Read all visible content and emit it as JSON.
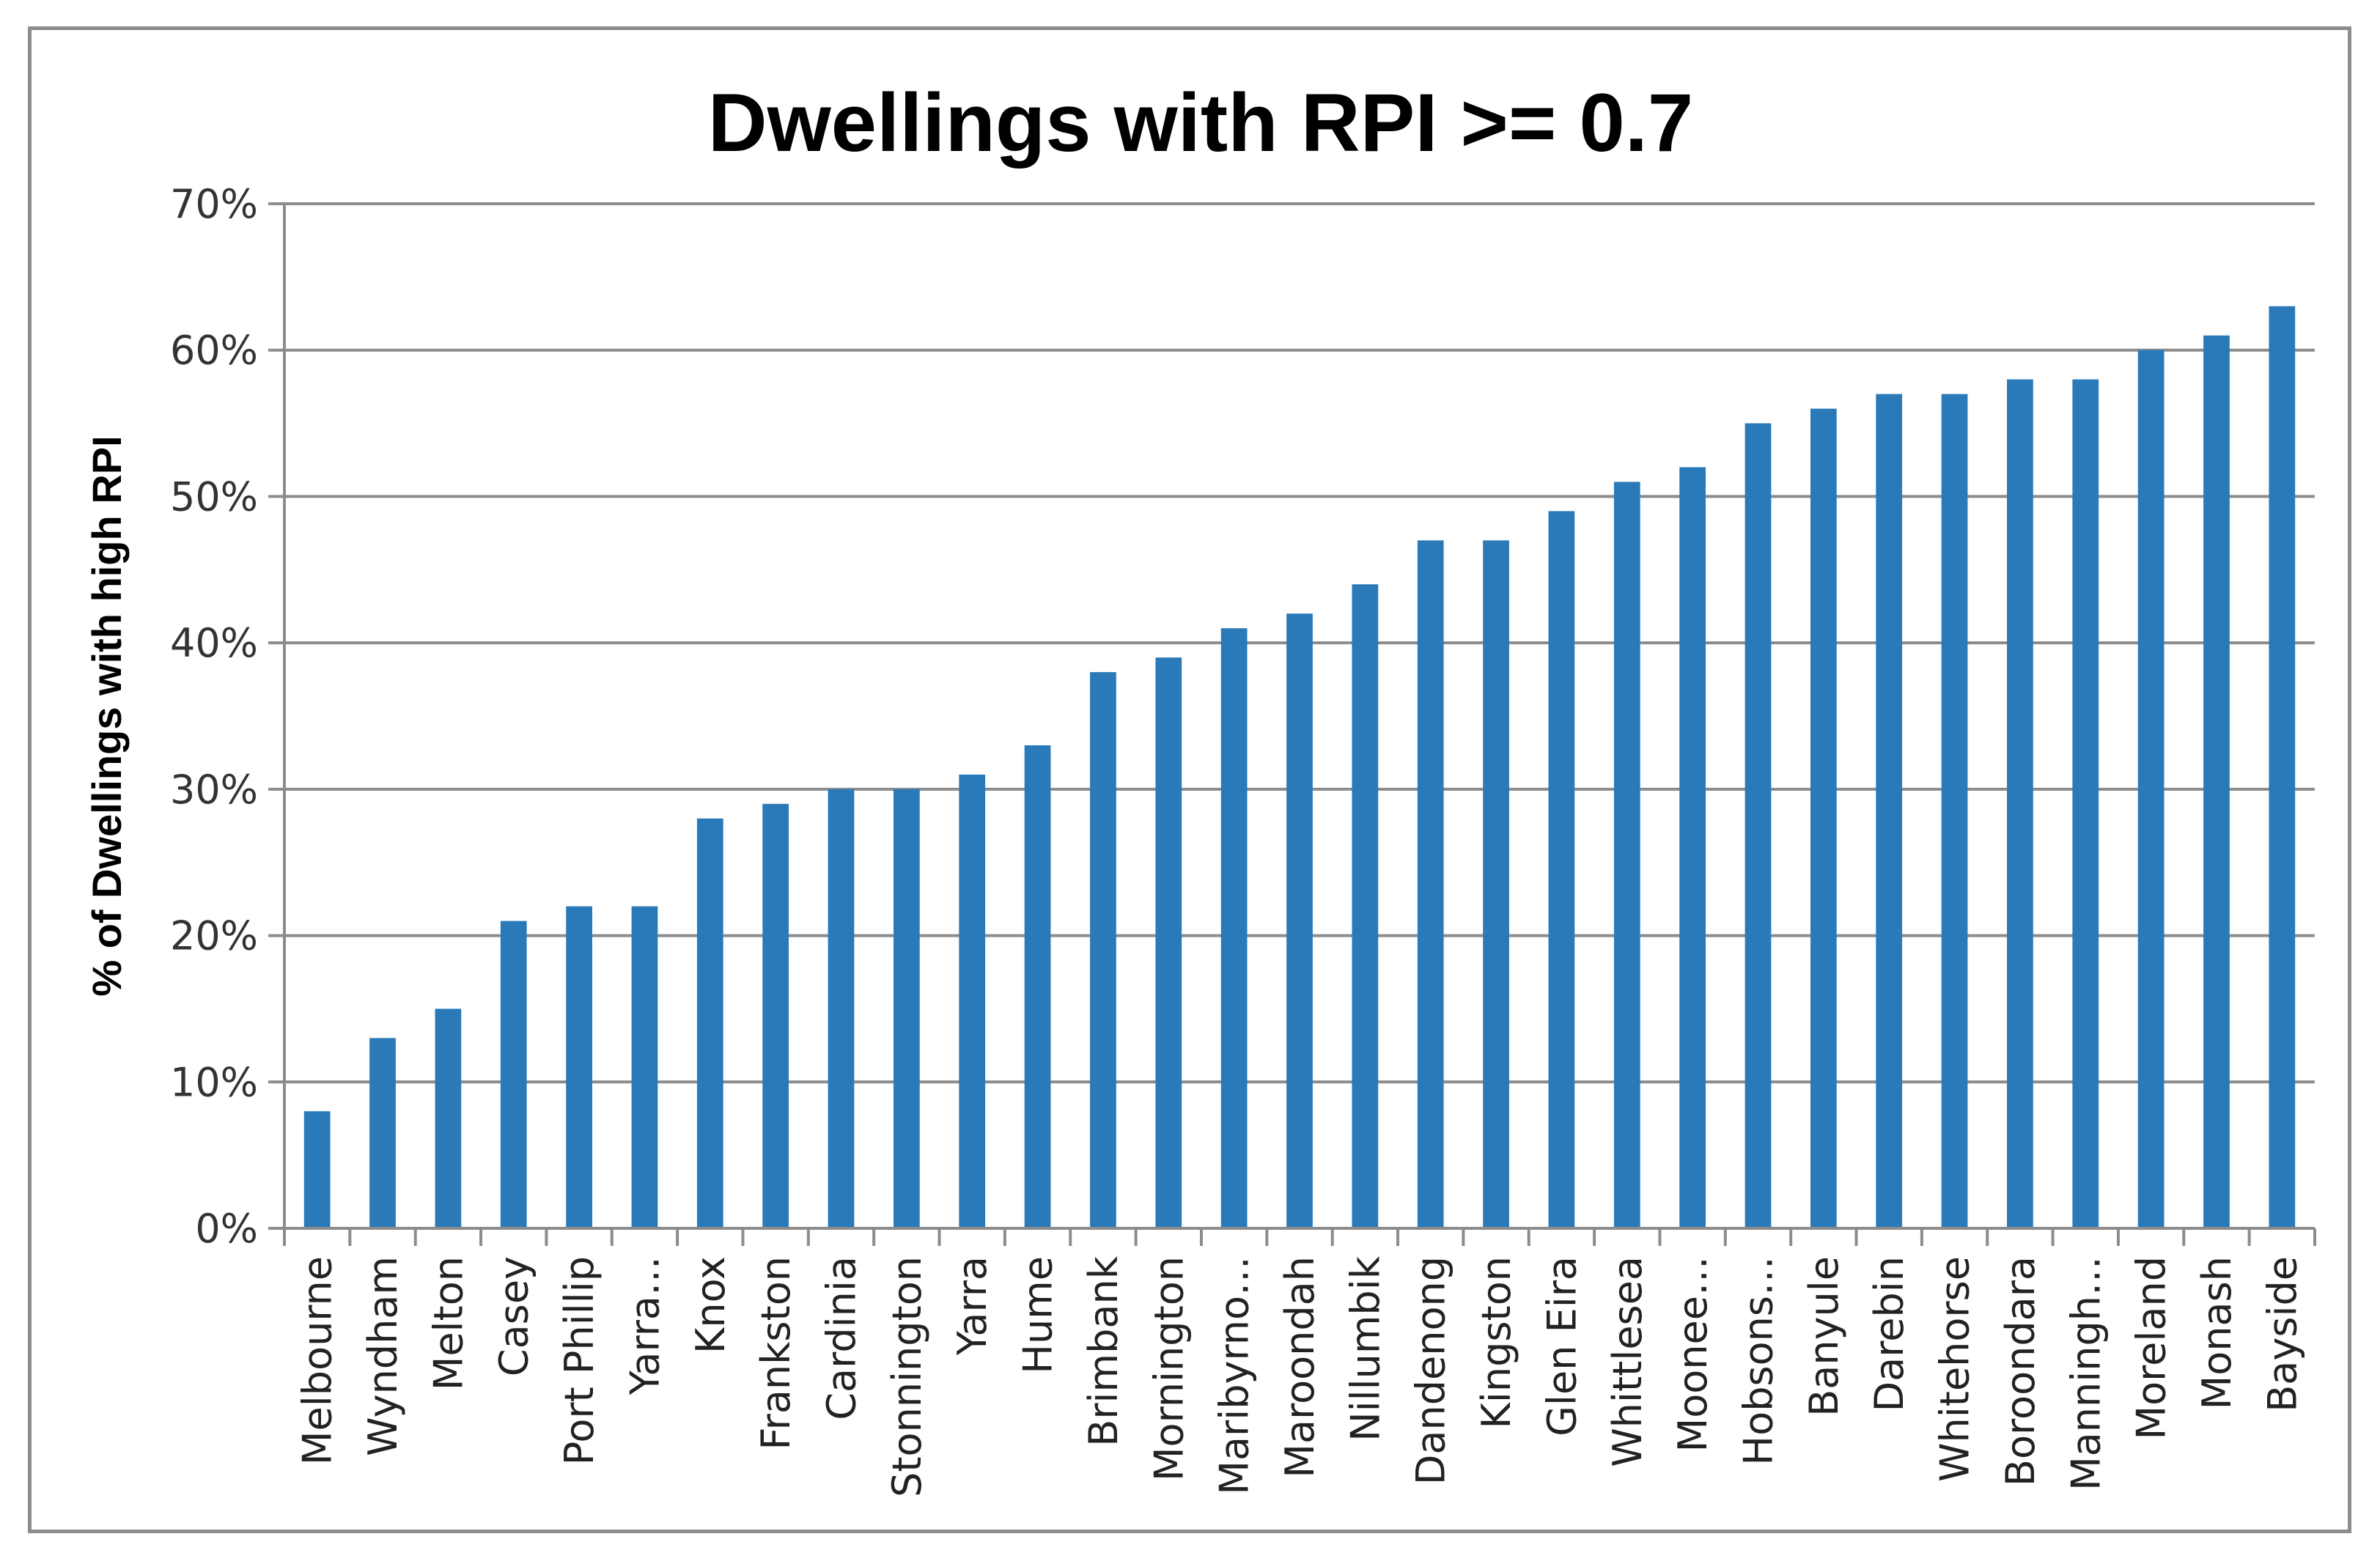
{
  "chart_data": {
    "type": "bar",
    "title": "Dwellings with RPI >= 0.7",
    "xlabel": "",
    "ylabel": "% of Dwellings with high RPI",
    "ylim": [
      0,
      70
    ],
    "yticks": [
      "0%",
      "10%",
      "20%",
      "30%",
      "40%",
      "50%",
      "60%",
      "70%"
    ],
    "grid": true,
    "bar_color": "#2A7AB9",
    "categories": [
      "Melbourne",
      "Wyndham",
      "Melton",
      "Casey",
      "Port Phillip",
      "Yarra…",
      "Knox",
      "Frankston",
      "Cardinia",
      "Stonnington",
      "Yarra",
      "Hume",
      "Brimbank",
      "Mornington",
      "Maribyrno…",
      "Maroondah",
      "Nillumbik",
      "Dandenong",
      "Kingston",
      "Glen Eira",
      "Whittlesea",
      "Moonee…",
      "Hobsons…",
      "Banyule",
      "Darebin",
      "Whitehorse",
      "Boroondara",
      "Manningh…",
      "Moreland",
      "Monash",
      "Bayside"
    ],
    "values": [
      8,
      13,
      15,
      21,
      22,
      22,
      28,
      29,
      30,
      30,
      31,
      33,
      38,
      39,
      41,
      42,
      44,
      47,
      47,
      49,
      51,
      52,
      55,
      56,
      57,
      57,
      58,
      58,
      60,
      61,
      63
    ]
  }
}
